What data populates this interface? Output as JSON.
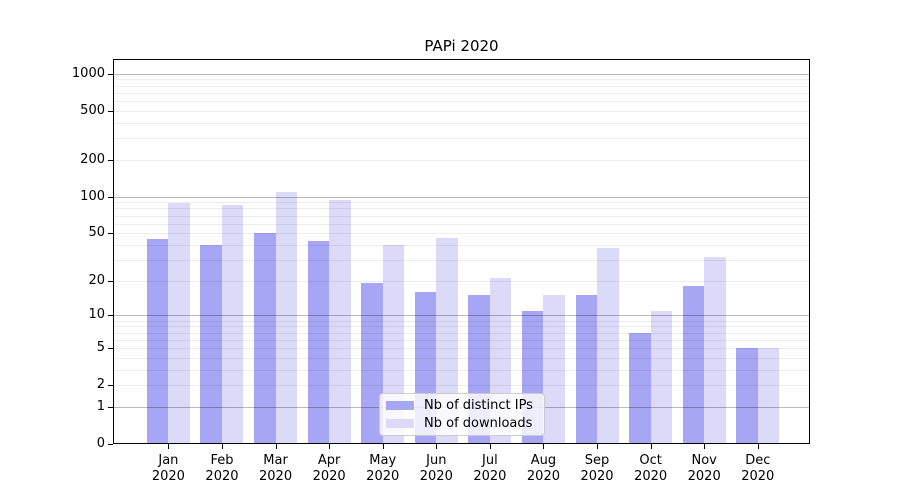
{
  "title": "PAPi 2020",
  "chart_data": {
    "type": "bar",
    "title": "PAPi 2020",
    "categories": [
      "Jan 2020",
      "Feb 2020",
      "Mar 2020",
      "Apr 2020",
      "May 2020",
      "Jun 2020",
      "Jul 2020",
      "Aug 2020",
      "Sep 2020",
      "Oct 2020",
      "Nov 2020",
      "Dec 2020"
    ],
    "series": [
      {
        "name": "Nb of distinct IPs",
        "color": "#a6a6f4",
        "values": [
          45,
          40,
          50,
          43,
          19,
          16,
          15,
          11,
          15,
          7,
          18,
          5
        ]
      },
      {
        "name": "Nb of downloads",
        "color": "#dbdbf9",
        "values": [
          88,
          86,
          110,
          94,
          40,
          46,
          21,
          15,
          38,
          11,
          32,
          5
        ]
      }
    ],
    "xlabel": "",
    "ylabel": "",
    "yscale": "log1p",
    "yticks": [
      0,
      1,
      2,
      5,
      10,
      20,
      50,
      100,
      200,
      500,
      1000
    ],
    "ylim": [
      0,
      1300
    ],
    "grid": true,
    "legend_position": "lower center",
    "background_color": "#ffffff",
    "major_grid_values": [
      1,
      10,
      100,
      1000
    ]
  },
  "legend": {
    "items": [
      {
        "label": "Nb of distinct IPs",
        "color": "#a6a6f4"
      },
      {
        "label": "Nb of downloads",
        "color": "#dbdbf9"
      }
    ]
  }
}
